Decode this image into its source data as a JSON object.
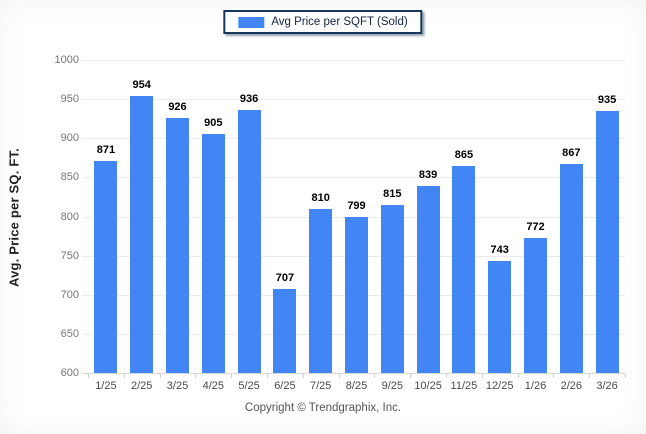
{
  "legend": {
    "label": "Avg Price per SQFT (Sold)",
    "swatch_color": "#4285f4"
  },
  "footer": {
    "text": "Copyright © Trendgraphix, Inc."
  },
  "colors": {
    "bar": "#4285f4",
    "grid": "#ececec",
    "axis": "#d8d8d8",
    "tick_mark": "#d0d0d0",
    "ytick_text": "#757575",
    "xtick_text": "#4a4a4a",
    "value_text": "#000000",
    "legend_border": "#17375e",
    "ylabel_text": "#222222",
    "footer_text": "#555555"
  },
  "chart_data": {
    "type": "bar",
    "title": "Avg Price per SQFT (Sold)",
    "categories": [
      "1/25",
      "2/25",
      "3/25",
      "4/25",
      "5/25",
      "6/25",
      "7/25",
      "8/25",
      "9/25",
      "10/25",
      "11/25",
      "12/25",
      "1/26",
      "2/26",
      "3/26"
    ],
    "values": [
      871,
      954,
      926,
      905,
      936,
      707,
      810,
      799,
      815,
      839,
      865,
      743,
      772,
      867,
      935
    ],
    "xlabel": "",
    "ylabel": "Avg. Price per SQ. FT.",
    "ylim": [
      600,
      1000
    ],
    "ytick_step": 50,
    "yticks": [
      600,
      650,
      700,
      750,
      800,
      850,
      900,
      950,
      1000
    ],
    "grid": "horizontal",
    "legend_position": "top-center",
    "bar_color": "#4285f4",
    "value_labels": true
  }
}
